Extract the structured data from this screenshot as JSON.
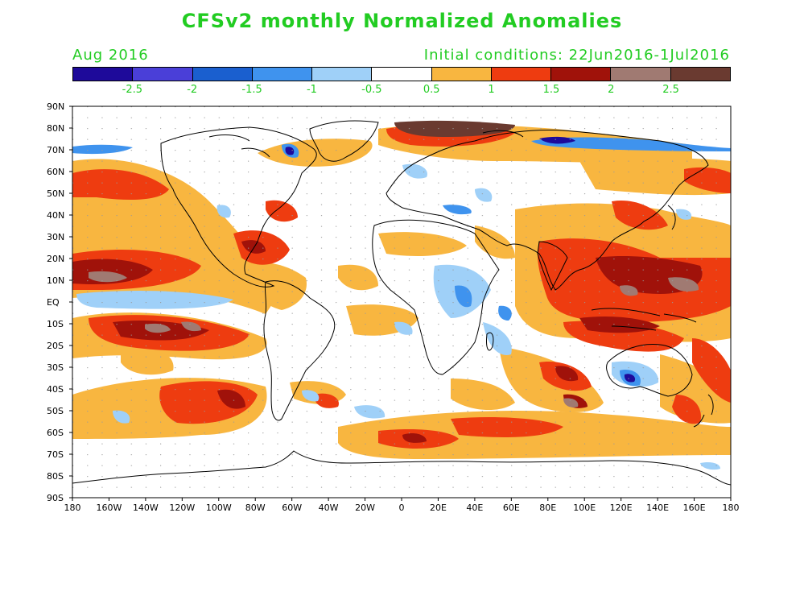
{
  "title": "CFSv2 monthly Normalized Anomalies",
  "month_label": "Aug 2016",
  "init_label": "Initial conditions: 22Jun2016-1Jul2016",
  "text_color": "#22cc22",
  "colorbar": {
    "colors": [
      "#1e0a9a",
      "#4a3fd8",
      "#1a5fcf",
      "#3f93ee",
      "#9fd0f8",
      "#ffffff",
      "#f8b640",
      "#ee3c10",
      "#a0120a",
      "#a07a72",
      "#6a3a30"
    ],
    "labels": [
      "-2.5",
      "-2",
      "-1.5",
      "-1",
      "-0.5",
      "0.5",
      "1",
      "1.5",
      "2",
      "2.5"
    ]
  },
  "lat_labels": [
    "90N",
    "80N",
    "70N",
    "60N",
    "50N",
    "40N",
    "30N",
    "20N",
    "10N",
    "EQ",
    "10S",
    "20S",
    "30S",
    "40S",
    "50S",
    "60S",
    "70S",
    "80S",
    "90S"
  ],
  "lon_labels": [
    "180",
    "160W",
    "140W",
    "120W",
    "100W",
    "80W",
    "60W",
    "40W",
    "20W",
    "0",
    "20E",
    "40E",
    "60E",
    "80E",
    "100E",
    "120E",
    "140E",
    "160E",
    "180"
  ]
}
